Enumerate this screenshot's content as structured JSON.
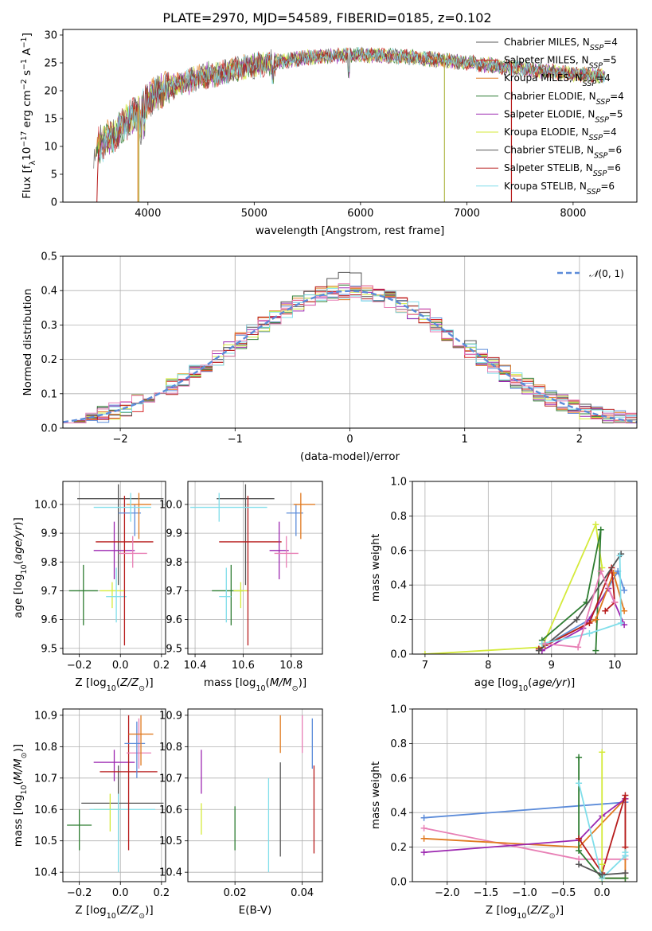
{
  "colors": {
    "chabrier_miles": "#5a5a5a",
    "salpeter_miles": "#d62728",
    "kroupa_miles": "#e07a20",
    "chabrier_elodie": "#2e7d32",
    "salpeter_elodie": "#9c27b0",
    "kroupa_elodie": "#d4ea3a",
    "chabrier_stelib": "#555555",
    "salpeter_stelib": "#b71c1c",
    "kroupa_stelib": "#80deea",
    "royal": "#5b8bd9",
    "pink": "#e87fb5",
    "teal": "#4db6ac"
  },
  "chart_data": [
    {
      "id": "spectrum",
      "type": "line",
      "title": "PLATE=2970, MJD=54589, FIBERID=0185, z=0.102",
      "xlabel": "wavelength [Angstrom, rest frame]",
      "ylabel": "Flux [f_λ10^-17 erg cm^-2 s^-1 A^-1]",
      "xlim": [
        3200,
        8600
      ],
      "ylim": [
        0,
        31
      ],
      "xticks": [
        4000,
        5000,
        6000,
        7000,
        8000
      ],
      "yticks": [
        0,
        5,
        10,
        15,
        20,
        25,
        30
      ],
      "grid": false,
      "legend_position": "upper-right",
      "continuum": {
        "x": [
          3500,
          3600,
          3700,
          3800,
          3900,
          4000,
          4200,
          4500,
          5000,
          5500,
          6000,
          6500,
          7000,
          7500,
          8000,
          8500
        ],
        "y": [
          9.5,
          11.0,
          12.5,
          14.5,
          16.0,
          18.5,
          20.5,
          22.5,
          24.5,
          26.0,
          26.5,
          26.0,
          25.0,
          24.0,
          23.0,
          22.5
        ]
      },
      "spikes": [
        {
          "x": 3915,
          "to": 0
        },
        {
          "x": 6790,
          "to": 0
        },
        {
          "x": 7420,
          "to": 0
        }
      ],
      "series": [
        {
          "name": "Chabrier MILES, N_SSP=4",
          "color_key": "chabrier_miles"
        },
        {
          "name": "Salpeter MILES, N_SSP=5",
          "color_key": "salpeter_miles"
        },
        {
          "name": "Kroupa MILES, N_SSP=4",
          "color_key": "kroupa_miles"
        },
        {
          "name": "Chabrier ELODIE, N_SSP=4",
          "color_key": "chabrier_elodie"
        },
        {
          "name": "Salpeter ELODIE, N_SSP=5",
          "color_key": "salpeter_elodie"
        },
        {
          "name": "Kroupa ELODIE, N_SSP=4",
          "color_key": "kroupa_elodie"
        },
        {
          "name": "Chabrier STELIB, N_SSP=6",
          "color_key": "chabrier_stelib"
        },
        {
          "name": "Salpeter STELIB, N_SSP=6",
          "color_key": "salpeter_stelib"
        },
        {
          "name": "Kroupa STELIB, N_SSP=6",
          "color_key": "kroupa_stelib"
        }
      ]
    },
    {
      "id": "residuals",
      "type": "line",
      "xlabel": "(data-model)/error",
      "ylabel": "Normed distribution",
      "xlim": [
        -2.5,
        2.5
      ],
      "ylim": [
        0,
        0.5
      ],
      "xticks": [
        -2,
        -1,
        0,
        1,
        2
      ],
      "yticks": [
        0.0,
        0.1,
        0.2,
        0.3,
        0.4,
        0.5
      ],
      "grid": true,
      "legend_position": "upper-right",
      "normal_curve": {
        "name": "N(0,1)",
        "mu": 0,
        "sigma": 1
      },
      "histogram_bin_width": 0.1,
      "histogram_colors": [
        "royal",
        "salpeter_miles",
        "kroupa_miles",
        "chabrier_elodie",
        "salpeter_elodie",
        "kroupa_elodie",
        "chabrier_stelib",
        "salpeter_stelib",
        "kroupa_stelib",
        "pink"
      ]
    },
    {
      "id": "age_vs_z",
      "type": "scatter",
      "xlabel": "Z [log10(Z/Z_sun)]",
      "ylabel": "age [log10(age/yr)]",
      "xlim": [
        -0.28,
        0.22
      ],
      "ylim": [
        9.48,
        10.08
      ],
      "xticks": [
        -0.2,
        0.0,
        0.2
      ],
      "yticks": [
        9.5,
        9.6,
        9.7,
        9.8,
        9.9,
        10.0
      ],
      "grid": true,
      "points": [
        {
          "x": -0.18,
          "xerr": [
            0.07,
            0.07
          ],
          "y": 9.7,
          "yerr": [
            0.12,
            0.09
          ],
          "color_key": "chabrier_elodie"
        },
        {
          "x": -0.04,
          "xerr": [
            0.06,
            0.06
          ],
          "y": 9.7,
          "yerr": [
            0.06,
            0.03
          ],
          "color_key": "kroupa_elodie"
        },
        {
          "x": -0.02,
          "xerr": [
            0.05,
            0.05
          ],
          "y": 9.68,
          "yerr": [
            0.09,
            0.1
          ],
          "color_key": "kroupa_stelib"
        },
        {
          "x": -0.01,
          "xerr": [
            0.2,
            0.22
          ],
          "y": 10.02,
          "yerr": [
            0.3,
            0.05
          ],
          "color_key": "chabrier_stelib"
        },
        {
          "x": -0.03,
          "xerr": [
            0.1,
            0.1
          ],
          "y": 9.84,
          "yerr": [
            0.1,
            0.1
          ],
          "color_key": "salpeter_elodie"
        },
        {
          "x": 0.02,
          "xerr": [
            0.14,
            0.14
          ],
          "y": 9.87,
          "yerr": [
            0.36,
            0.16
          ],
          "color_key": "salpeter_stelib"
        },
        {
          "x": 0.06,
          "xerr": [
            0.07,
            0.07
          ],
          "y": 9.83,
          "yerr": [
            0.05,
            0.06
          ],
          "color_key": "pink"
        },
        {
          "x": 0.07,
          "xerr": [
            0.08,
            0.03
          ],
          "y": 9.97,
          "yerr": [
            0.08,
            0.03
          ],
          "color_key": "royal"
        },
        {
          "x": 0.09,
          "xerr": [
            0.06,
            0.06
          ],
          "y": 10.0,
          "yerr": [
            0.12,
            0.04
          ],
          "color_key": "kroupa_miles"
        },
        {
          "x": 0.05,
          "xerr": [
            0.18,
            0.1
          ],
          "y": 9.99,
          "yerr": [
            0.05,
            0.05
          ],
          "color_key": "kroupa_stelib"
        }
      ]
    },
    {
      "id": "age_vs_mass",
      "type": "scatter",
      "xlabel": "mass [log10(M/M_sun)]",
      "ylabel": "",
      "xlim": [
        10.37,
        10.93
      ],
      "ylim": [
        9.48,
        10.08
      ],
      "xticks": [
        10.4,
        10.6,
        10.8
      ],
      "yticks": [
        9.5,
        9.6,
        9.7,
        9.8,
        9.9,
        10.0
      ],
      "grid": true,
      "points": [
        {
          "x": 10.55,
          "xerr": [
            0.08,
            0.05
          ],
          "y": 9.7,
          "yerr": [
            0.12,
            0.09
          ],
          "color_key": "chabrier_elodie"
        },
        {
          "x": 10.53,
          "xerr": [
            0.03,
            0.02
          ],
          "y": 9.68,
          "yerr": [
            0.09,
            0.1
          ],
          "color_key": "kroupa_stelib"
        },
        {
          "x": 10.59,
          "xerr": [
            0.03,
            0.03
          ],
          "y": 9.7,
          "yerr": [
            0.06,
            0.03
          ],
          "color_key": "kroupa_elodie"
        },
        {
          "x": 10.61,
          "xerr": [
            0.12,
            0.12
          ],
          "y": 10.02,
          "yerr": [
            0.3,
            0.05
          ],
          "color_key": "chabrier_stelib"
        },
        {
          "x": 10.62,
          "xerr": [
            0.12,
            0.14
          ],
          "y": 9.87,
          "yerr": [
            0.36,
            0.16
          ],
          "color_key": "salpeter_stelib"
        },
        {
          "x": 10.75,
          "xerr": [
            0.04,
            0.04
          ],
          "y": 9.84,
          "yerr": [
            0.1,
            0.1
          ],
          "color_key": "salpeter_elodie"
        },
        {
          "x": 10.78,
          "xerr": [
            0.05,
            0.05
          ],
          "y": 9.83,
          "yerr": [
            0.05,
            0.06
          ],
          "color_key": "pink"
        },
        {
          "x": 10.82,
          "xerr": [
            0.04,
            0.03
          ],
          "y": 9.97,
          "yerr": [
            0.08,
            0.03
          ],
          "color_key": "royal"
        },
        {
          "x": 10.84,
          "xerr": [
            0.03,
            0.06
          ],
          "y": 10.0,
          "yerr": [
            0.12,
            0.04
          ],
          "color_key": "kroupa_miles"
        },
        {
          "x": 10.5,
          "xerr": [
            0.12,
            0.2
          ],
          "y": 9.99,
          "yerr": [
            0.05,
            0.05
          ],
          "color_key": "kroupa_stelib"
        }
      ]
    },
    {
      "id": "weight_vs_age",
      "type": "line",
      "xlabel": "age [log10(age/yr)]",
      "ylabel": "mass weight",
      "xlim": [
        6.8,
        10.35
      ],
      "ylim": [
        0,
        1.0
      ],
      "xticks": [
        7,
        8,
        9,
        10
      ],
      "yticks": [
        0.0,
        0.2,
        0.4,
        0.6,
        0.8,
        1.0
      ],
      "grid": true,
      "series": [
        {
          "color_key": "kroupa_elodie",
          "x": [
            7.0,
            8.85,
            9.7,
            9.8
          ],
          "y": [
            0.0,
            0.04,
            0.75,
            0.5
          ]
        },
        {
          "color_key": "chabrier_elodie",
          "x": [
            8.85,
            9.55,
            9.78,
            9.7
          ],
          "y": [
            0.08,
            0.3,
            0.72,
            0.02
          ]
        },
        {
          "color_key": "royal",
          "x": [
            8.9,
            9.6,
            10.05,
            10.15
          ],
          "y": [
            0.05,
            0.2,
            0.48,
            0.37
          ]
        },
        {
          "color_key": "salpeter_elodie",
          "x": [
            8.85,
            9.5,
            9.9,
            10.15
          ],
          "y": [
            0.02,
            0.15,
            0.38,
            0.17
          ]
        },
        {
          "color_key": "kroupa_miles",
          "x": [
            8.9,
            9.7,
            9.98,
            10.15
          ],
          "y": [
            0.05,
            0.2,
            0.47,
            0.25
          ]
        },
        {
          "color_key": "salpeter_stelib",
          "x": [
            8.8,
            9.6,
            9.95,
            10.0,
            9.85
          ],
          "y": [
            0.03,
            0.18,
            0.5,
            0.3,
            0.25
          ]
        },
        {
          "color_key": "chabrier_stelib",
          "x": [
            8.8,
            9.4,
            10.1
          ],
          "y": [
            0.02,
            0.2,
            0.58
          ]
        },
        {
          "color_key": "kroupa_stelib",
          "x": [
            8.85,
            9.6,
            10.1,
            10.08
          ],
          "y": [
            0.06,
            0.12,
            0.18,
            0.57
          ]
        },
        {
          "color_key": "pink",
          "x": [
            8.9,
            9.42,
            9.78,
            10.0
          ],
          "y": [
            0.06,
            0.04,
            0.48,
            0.3
          ]
        }
      ]
    },
    {
      "id": "mass_vs_z",
      "type": "scatter",
      "xlabel": "Z [log10(Z/Z_sun)]",
      "ylabel": "mass [log10(M/M_sun)]",
      "xlim": [
        -0.28,
        0.22
      ],
      "ylim": [
        10.37,
        10.92
      ],
      "xticks": [
        -0.2,
        0.0,
        0.2
      ],
      "yticks": [
        10.4,
        10.5,
        10.6,
        10.7,
        10.8,
        10.9
      ],
      "grid": true,
      "points": [
        {
          "x": -0.2,
          "xerr": [
            0.06,
            0.06
          ],
          "y": 10.55,
          "yerr": [
            0.08,
            0.05
          ],
          "color_key": "chabrier_elodie"
        },
        {
          "x": -0.01,
          "xerr": [
            0.18,
            0.22
          ],
          "y": 10.62,
          "yerr": [
            0.12,
            0.12
          ],
          "color_key": "chabrier_stelib"
        },
        {
          "x": -0.05,
          "xerr": [
            0.08,
            0.05
          ],
          "y": 10.6,
          "yerr": [
            0.07,
            0.05
          ],
          "color_key": "kroupa_elodie"
        },
        {
          "x": -0.03,
          "xerr": [
            0.1,
            0.1
          ],
          "y": 10.75,
          "yerr": [
            0.06,
            0.04
          ],
          "color_key": "salpeter_elodie"
        },
        {
          "x": -0.01,
          "xerr": [
            0.14,
            0.18
          ],
          "y": 10.6,
          "yerr": [
            0.2,
            0.05
          ],
          "color_key": "kroupa_stelib"
        },
        {
          "x": 0.04,
          "xerr": [
            0.14,
            0.14
          ],
          "y": 10.72,
          "yerr": [
            0.25,
            0.18
          ],
          "color_key": "salpeter_stelib"
        },
        {
          "x": 0.09,
          "xerr": [
            0.06,
            0.06
          ],
          "y": 10.78,
          "yerr": [
            0.05,
            0.11
          ],
          "color_key": "pink"
        },
        {
          "x": 0.08,
          "xerr": [
            0.06,
            0.04
          ],
          "y": 10.81,
          "yerr": [
            0.11,
            0.07
          ],
          "color_key": "royal"
        },
        {
          "x": 0.1,
          "xerr": [
            0.06,
            0.06
          ],
          "y": 10.84,
          "yerr": [
            0.1,
            0.06
          ],
          "color_key": "kroupa_miles"
        }
      ]
    },
    {
      "id": "mass_vs_ebv",
      "type": "scatter",
      "xlabel": "E(B-V)",
      "ylabel": "",
      "xlim": [
        0.006,
        0.046
      ],
      "ylim": [
        10.37,
        10.92
      ],
      "xticks": [
        0.02,
        0.04
      ],
      "yticks": [
        10.4,
        10.5,
        10.6,
        10.7,
        10.8,
        10.9
      ],
      "grid": true,
      "points": [
        {
          "x": 0.01,
          "y": 10.57,
          "yerr": [
            0.05,
            0.05
          ],
          "color_key": "kroupa_elodie"
        },
        {
          "x": 0.01,
          "y": 10.72,
          "yerr": [
            0.07,
            0.07
          ],
          "color_key": "salpeter_elodie"
        },
        {
          "x": 0.02,
          "y": 10.54,
          "yerr": [
            0.07,
            0.07
          ],
          "color_key": "chabrier_elodie"
        },
        {
          "x": 0.03,
          "y": 10.55,
          "yerr": [
            0.15,
            0.15
          ],
          "color_key": "kroupa_stelib"
        },
        {
          "x": 0.0335,
          "y": 10.6,
          "yerr": [
            0.15,
            0.15
          ],
          "color_key": "chabrier_stelib"
        },
        {
          "x": 0.0335,
          "y": 10.84,
          "yerr": [
            0.06,
            0.06
          ],
          "color_key": "kroupa_miles"
        },
        {
          "x": 0.04,
          "y": 10.84,
          "yerr": [
            0.06,
            0.06
          ],
          "color_key": "pink"
        },
        {
          "x": 0.043,
          "y": 10.81,
          "yerr": [
            0.08,
            0.08
          ],
          "color_key": "royal"
        },
        {
          "x": 0.0435,
          "y": 10.6,
          "yerr": [
            0.14,
            0.14
          ],
          "color_key": "salpeter_stelib"
        }
      ]
    },
    {
      "id": "weight_vs_z",
      "type": "line",
      "xlabel": "Z [log10(Z/Z_sun)]",
      "ylabel": "mass weight",
      "xlim": [
        -2.45,
        0.45
      ],
      "ylim": [
        0,
        1.0
      ],
      "xticks": [
        -2.0,
        -1.5,
        -1.0,
        -0.5,
        0.0
      ],
      "yticks": [
        0.0,
        0.2,
        0.4,
        0.6,
        0.8,
        1.0
      ],
      "grid": true,
      "series": [
        {
          "color_key": "royal",
          "x": [
            -2.3,
            0.3,
            0.3
          ],
          "y": [
            0.37,
            0.46,
            0.15
          ]
        },
        {
          "color_key": "pink",
          "x": [
            -2.3,
            -0.3,
            0.3,
            0.3
          ],
          "y": [
            0.31,
            0.13,
            0.13,
            0.05
          ]
        },
        {
          "color_key": "kroupa_miles",
          "x": [
            -2.3,
            -0.3,
            0.3,
            0.3,
            0.0
          ],
          "y": [
            0.25,
            0.2,
            0.48,
            0.02,
            0.02
          ]
        },
        {
          "color_key": "salpeter_elodie",
          "x": [
            -2.3,
            -0.3,
            0.0,
            0.3
          ],
          "y": [
            0.17,
            0.24,
            0.38,
            0.48
          ]
        },
        {
          "color_key": "chabrier_elodie",
          "x": [
            -0.3,
            -0.3,
            0.0,
            0.3
          ],
          "y": [
            0.72,
            0.18,
            0.02,
            0.02
          ]
        },
        {
          "color_key": "salpeter_stelib",
          "x": [
            -0.3,
            0.0,
            0.3,
            0.3
          ],
          "y": [
            0.25,
            0.05,
            0.5,
            0.2
          ]
        },
        {
          "color_key": "kroupa_elodie",
          "x": [
            0.0,
            0.0,
            0.0
          ],
          "y": [
            0.75,
            0.1,
            0.0
          ]
        },
        {
          "color_key": "kroupa_stelib",
          "x": [
            -0.3,
            0.0,
            0.3,
            0.3
          ],
          "y": [
            0.57,
            0.02,
            0.15,
            0.17
          ]
        },
        {
          "color_key": "chabrier_stelib",
          "x": [
            -0.3,
            0.0,
            0.3
          ],
          "y": [
            0.1,
            0.04,
            0.05
          ]
        }
      ]
    }
  ]
}
